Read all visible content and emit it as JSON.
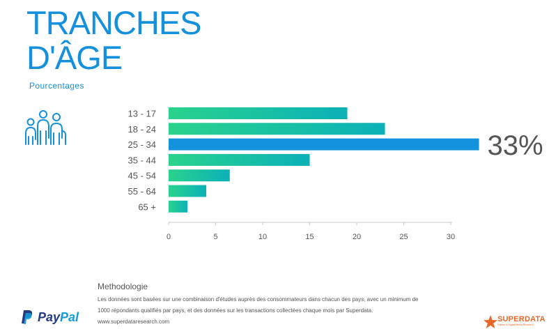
{
  "header": {
    "title_line1": "TRANCHES",
    "title_line2": "D'ÂGE",
    "subtitle": "Pourcentages"
  },
  "icons": {
    "people": "people-group-icon"
  },
  "colors": {
    "accent": "#1590dc",
    "bar_gradient_start": "#29d38c",
    "bar_gradient_end": "#0bb1b8",
    "highlight_bar": "#1592dc",
    "text": "#555555",
    "paypal_dark": "#253b80",
    "paypal_light": "#179bd7",
    "superdata": "#e8672a"
  },
  "chart_data": {
    "type": "bar",
    "orientation": "horizontal",
    "categories": [
      "13 - 17",
      "18 - 24",
      "25 - 34",
      "35 - 44",
      "45 - 54",
      "55 - 64",
      "65 +"
    ],
    "values": [
      19,
      23,
      33,
      15,
      6.5,
      4,
      2
    ],
    "highlight_index": 2,
    "highlight_label": "33%",
    "xlim": [
      0,
      32
    ],
    "xticks": [
      0,
      5,
      10,
      15,
      20,
      25,
      30
    ],
    "grid": false
  },
  "footer": {
    "methodology_title": "Methodologie",
    "methodology_line1": "Les données sont basées sur une combinaison d'études auprès des consommateurs dans chacun des pays, avec un minimum de",
    "methodology_line2": "1000 répondants qualifiés par pays, et des données sur les transactions collectées chaque mois par Superdata.",
    "url": "www.superdataresearch.com",
    "paypal_pay": "Pay",
    "paypal_pal": "Pal",
    "superdata_name": "SUPERDATA",
    "superdata_tagline": "Games & Digital Media Research"
  }
}
